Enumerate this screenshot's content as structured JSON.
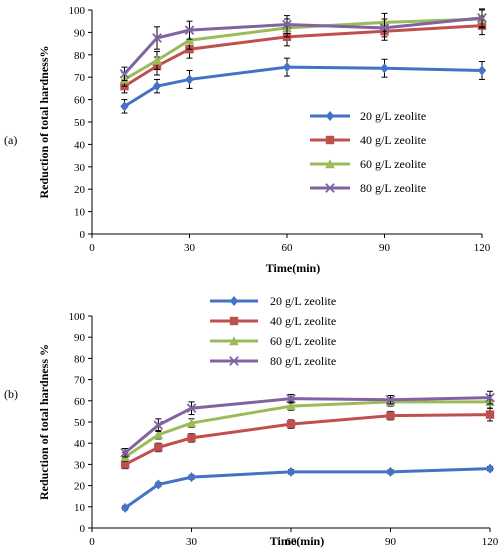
{
  "chart_data": [
    {
      "type": "line",
      "panel_label": "(a)",
      "xlabel": "Time(min)",
      "ylabel": "Reduction of total hardness%",
      "xlim": [
        0,
        120
      ],
      "ylim": [
        0,
        100
      ],
      "xticks": [
        0,
        30,
        60,
        90,
        120
      ],
      "yticks": [
        0,
        10,
        20,
        30,
        40,
        50,
        60,
        70,
        80,
        90,
        100
      ],
      "x": [
        10,
        20,
        30,
        60,
        90,
        120
      ],
      "error_bars": true,
      "legend_position": "center-right",
      "series": [
        {
          "name": "20 g/L zeolite",
          "color": "#4472c4",
          "marker": "diamond",
          "values": [
            57,
            66,
            69,
            74.5,
            74,
            73
          ],
          "errors": [
            3,
            3,
            4,
            4,
            4,
            4
          ]
        },
        {
          "name": "40 g/L zeolite",
          "color": "#c0504d",
          "marker": "square",
          "values": [
            66,
            75,
            82.5,
            88,
            90.5,
            93
          ],
          "errors": [
            3,
            4,
            4,
            4,
            4,
            4
          ]
        },
        {
          "name": "60 g/L zeolite",
          "color": "#9bbb59",
          "marker": "triangle",
          "values": [
            69,
            77.5,
            86.5,
            92,
            94.5,
            96
          ],
          "errors": [
            3,
            4,
            4,
            4,
            4,
            4
          ]
        },
        {
          "name": "80 g/L zeolite",
          "color": "#8064a2",
          "marker": "x",
          "values": [
            71.5,
            87.5,
            91,
            93.5,
            92,
            96.5
          ],
          "errors": [
            3,
            5,
            4,
            4,
            4,
            4
          ]
        }
      ]
    },
    {
      "type": "line",
      "panel_label": "(b)",
      "xlabel": "Time(min)",
      "ylabel": "Reduction of total hardness %",
      "xlim": [
        0,
        120
      ],
      "ylim": [
        0,
        100
      ],
      "xticks": [
        0,
        30,
        60,
        90,
        120
      ],
      "yticks": [
        0,
        10,
        20,
        30,
        40,
        50,
        60,
        70,
        80,
        90,
        100
      ],
      "x": [
        10,
        20,
        30,
        60,
        90,
        120
      ],
      "error_bars": true,
      "legend_position": "top-center",
      "series": [
        {
          "name": "20 g/L zeolite",
          "color": "#4472c4",
          "marker": "diamond",
          "values": [
            9.5,
            20.5,
            24,
            26.5,
            26.5,
            28
          ],
          "errors": [
            1,
            1,
            1,
            1,
            1,
            1
          ]
        },
        {
          "name": "40 g/L zeolite",
          "color": "#c0504d",
          "marker": "square",
          "values": [
            30,
            38,
            42.5,
            49,
            53,
            53.5
          ],
          "errors": [
            2,
            2,
            2,
            2,
            2,
            3
          ]
        },
        {
          "name": "60 g/L zeolite",
          "color": "#9bbb59",
          "marker": "triangle",
          "values": [
            33.5,
            44,
            49.5,
            57.5,
            59.5,
            59.5
          ],
          "errors": [
            2,
            2,
            2,
            2,
            2,
            3
          ]
        },
        {
          "name": "80 g/L zeolite",
          "color": "#8064a2",
          "marker": "x",
          "values": [
            35.5,
            48.5,
            56.5,
            61,
            60.5,
            61.5
          ],
          "errors": [
            2,
            3,
            3,
            2,
            2,
            3
          ]
        }
      ]
    }
  ]
}
